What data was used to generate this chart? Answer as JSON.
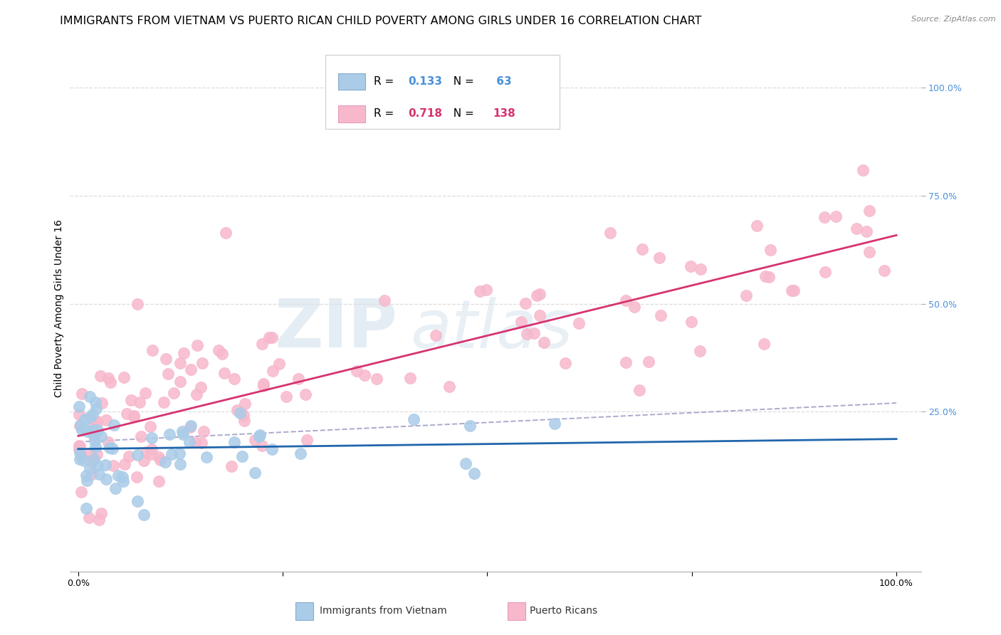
{
  "title": "IMMIGRANTS FROM VIETNAM VS PUERTO RICAN CHILD POVERTY AMONG GIRLS UNDER 16 CORRELATION CHART",
  "source": "Source: ZipAtlas.com",
  "ylabel": "Child Poverty Among Girls Under 16",
  "legend1_label": "Immigrants from Vietnam",
  "legend2_label": "Puerto Ricans",
  "R1": 0.133,
  "N1": 63,
  "R2": 0.718,
  "N2": 138,
  "blue_scatter_color": "#aacce8",
  "pink_scatter_color": "#f7b8cc",
  "blue_line_color": "#2166ac",
  "pink_line_color": "#d63370",
  "dashed_line_color": "#aaaacc",
  "grid_color": "#dddddd",
  "right_tick_color": "#4a90d9",
  "title_fontsize": 11.5,
  "source_fontsize": 8,
  "ylabel_fontsize": 10,
  "tick_fontsize": 9,
  "legend_fontsize": 11,
  "watermark_zip_color": "#c5d8e8",
  "watermark_atlas_color": "#c5d8e8"
}
